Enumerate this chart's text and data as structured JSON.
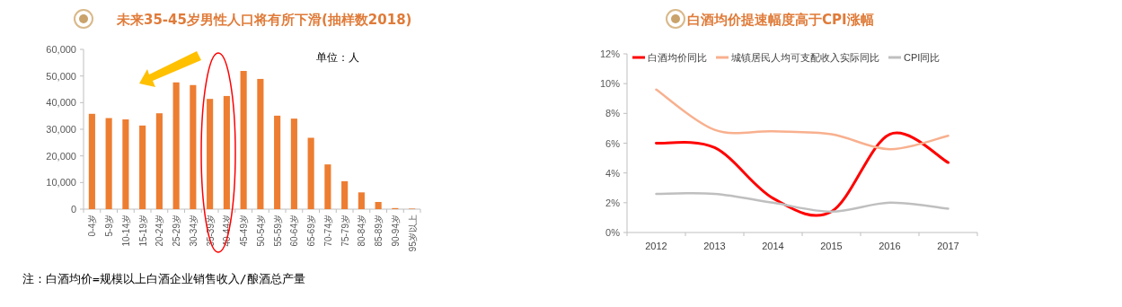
{
  "chart_data": [
    {
      "type": "bar",
      "title": "未来35-45岁男性人口将有所下滑(抽样数2018)",
      "categories": [
        "0-4岁",
        "5-9岁",
        "10-14岁",
        "15-19岁",
        "20-24岁",
        "25-29岁",
        "30-34岁",
        "35-39岁",
        "40-44岁",
        "45-49岁",
        "50-54岁",
        "55-59岁",
        "60-64岁",
        "65-69岁",
        "70-74岁",
        "75-79岁",
        "80-84岁",
        "85-89岁",
        "90-94岁",
        "95岁以上"
      ],
      "values": [
        35800,
        34200,
        33700,
        31400,
        36000,
        47600,
        46600,
        41400,
        42500,
        51900,
        48900,
        35100,
        34000,
        26800,
        16800,
        10500,
        6300,
        2700,
        400,
        200
      ],
      "color": "#ed7d31",
      "ylim": [
        0,
        60000
      ],
      "yticks": [
        {
          "value": 0,
          "label": "0"
        },
        {
          "value": 10000,
          "label": "10,000"
        },
        {
          "value": 20000,
          "label": "20,000"
        },
        {
          "value": 30000,
          "label": "30,000"
        },
        {
          "value": 40000,
          "label": "40,000"
        },
        {
          "value": 50000,
          "label": "50,000"
        },
        {
          "value": 60000,
          "label": "60,000"
        }
      ],
      "annotations": [
        "单位：人",
        "注：白酒均价=规模以上白酒企业销售收入/酿酒总产量"
      ]
    },
    {
      "type": "line",
      "title": "白酒均价提速幅度高于CPI涨幅",
      "categories": [
        "2012",
        "2013",
        "2014",
        "2015",
        "2016",
        "2017"
      ],
      "series": [
        {
          "name": "白酒均价同比",
          "color": "#ff0000",
          "values": [
            6.0,
            5.7,
            2.3,
            1.4,
            6.6,
            4.7
          ]
        },
        {
          "name": "城镇居民人均可支配收入实际同比",
          "color": "#f8b08e",
          "values": [
            9.6,
            6.9,
            6.8,
            6.6,
            5.6,
            6.5
          ]
        },
        {
          "name": "CPI同比",
          "color": "#bfbfbf",
          "values": [
            2.6,
            2.6,
            2.0,
            1.4,
            2.0,
            1.6
          ]
        }
      ],
      "ylim": [
        0,
        12
      ],
      "yticks": [
        {
          "value": 0,
          "label": "0%"
        },
        {
          "value": 2,
          "label": "2%"
        },
        {
          "value": 4,
          "label": "4%"
        },
        {
          "value": 6,
          "label": "6%"
        },
        {
          "value": 8,
          "label": "8%"
        },
        {
          "value": 10,
          "label": "10%"
        },
        {
          "value": 12,
          "label": "12%"
        }
      ],
      "legend": "top"
    }
  ]
}
